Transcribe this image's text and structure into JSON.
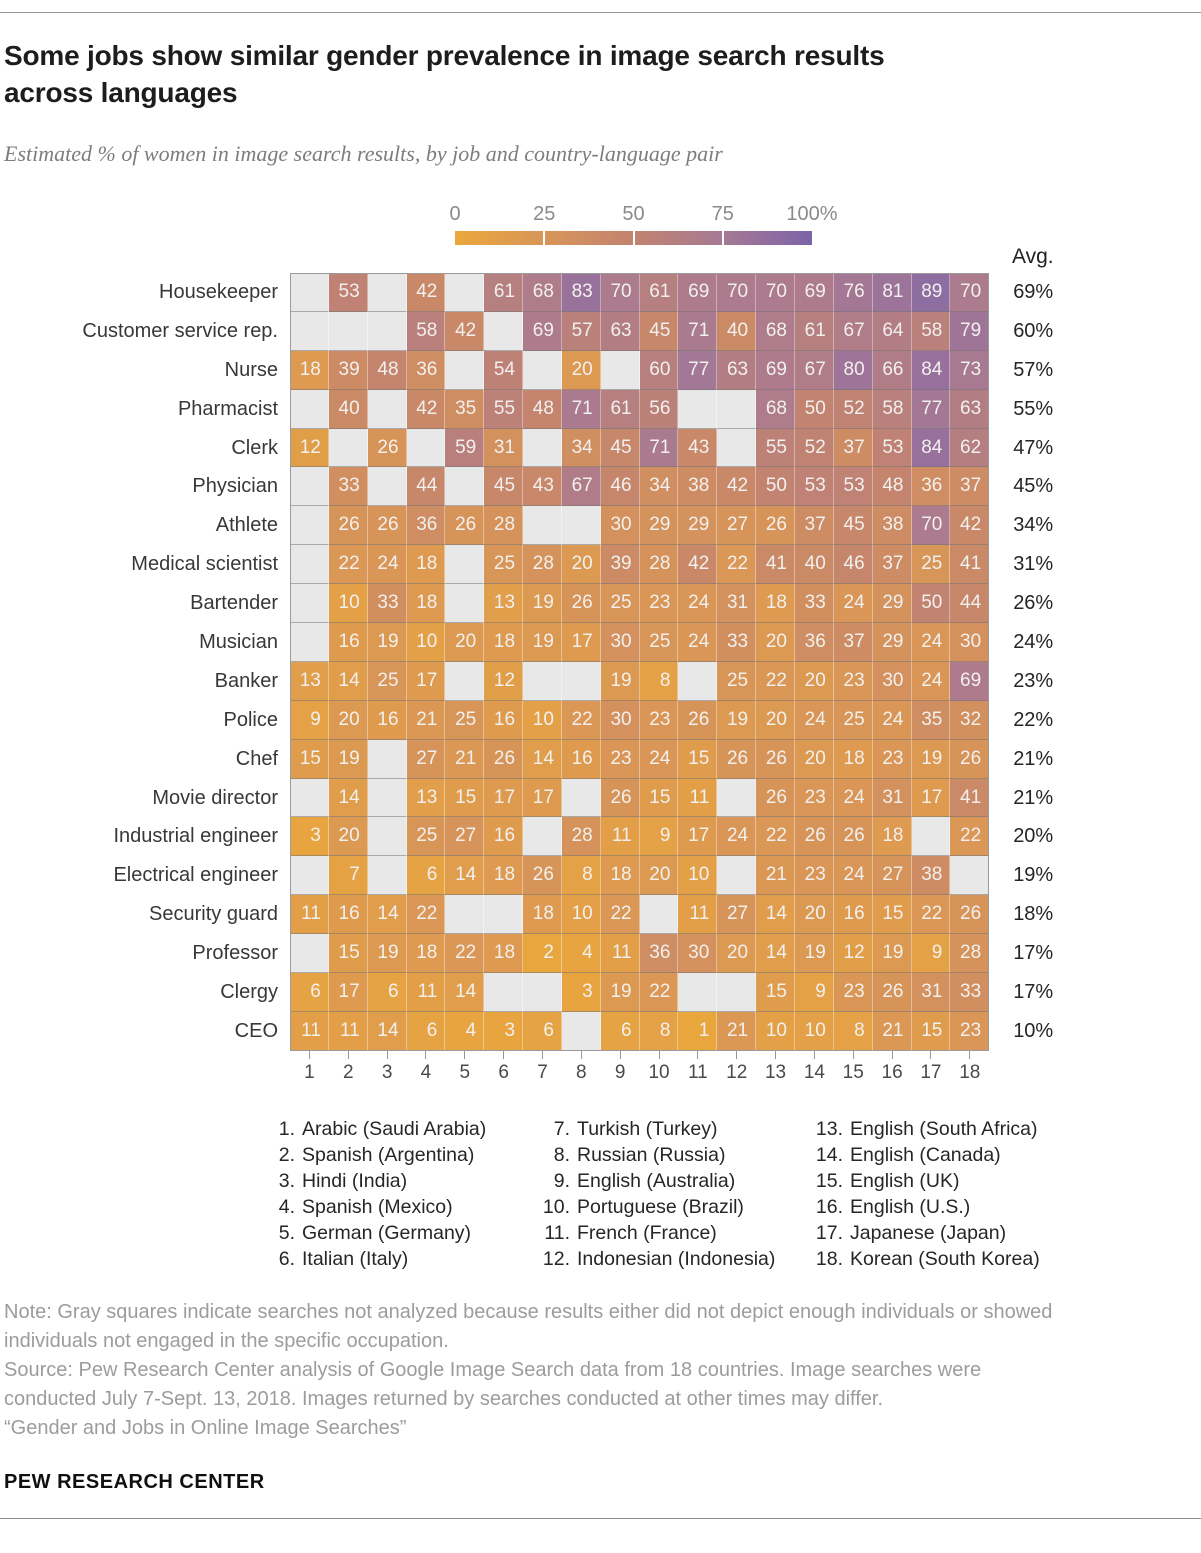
{
  "header": {
    "title_lines": [
      "Some jobs show similar gender prevalence in image search results",
      "across languages"
    ],
    "subtitle": "Estimated % of women in image search results, by job and country-language pair"
  },
  "chart_data": {
    "type": "heatmap",
    "title": "Some jobs show similar gender prevalence in image search results across languages",
    "subtitle": "Estimated % of women in image search results, by job and country-language pair",
    "value_domain": [
      0,
      100
    ],
    "colorbar": {
      "tick_labels": [
        "0",
        "25",
        "50",
        "75",
        "100%"
      ],
      "tick_positions": [
        0,
        25,
        50,
        75,
        100
      ],
      "gradient_stops": [
        "#EAA73C",
        "#D89558",
        "#C28370",
        "#A67994",
        "#7C63A9"
      ]
    },
    "missing_color": "#e8e8e8",
    "missing_meaning": "search not analyzed",
    "avg_header": "Avg.",
    "columns": [
      "1",
      "2",
      "3",
      "4",
      "5",
      "6",
      "7",
      "8",
      "9",
      "10",
      "11",
      "12",
      "13",
      "14",
      "15",
      "16",
      "17",
      "18"
    ],
    "rows": [
      {
        "job": "Housekeeper",
        "values": [
          null,
          53,
          null,
          42,
          null,
          61,
          68,
          83,
          70,
          61,
          69,
          70,
          70,
          69,
          76,
          81,
          89,
          70
        ],
        "avg": "69%"
      },
      {
        "job": "Customer service rep.",
        "values": [
          null,
          null,
          null,
          58,
          42,
          null,
          69,
          57,
          63,
          45,
          71,
          40,
          68,
          61,
          67,
          64,
          58,
          79
        ],
        "avg": "60%"
      },
      {
        "job": "Nurse",
        "values": [
          18,
          39,
          48,
          36,
          null,
          54,
          null,
          20,
          null,
          60,
          77,
          63,
          69,
          67,
          80,
          66,
          84,
          73
        ],
        "avg": "57%"
      },
      {
        "job": "Pharmacist",
        "values": [
          null,
          40,
          null,
          42,
          35,
          55,
          48,
          71,
          61,
          56,
          null,
          null,
          68,
          50,
          52,
          58,
          77,
          63
        ],
        "avg": "55%"
      },
      {
        "job": "Clerk",
        "values": [
          12,
          null,
          26,
          null,
          59,
          31,
          null,
          34,
          45,
          71,
          43,
          null,
          55,
          52,
          37,
          53,
          84,
          62
        ],
        "avg": "47%"
      },
      {
        "job": "Physician",
        "values": [
          null,
          33,
          null,
          44,
          null,
          45,
          43,
          67,
          46,
          34,
          38,
          42,
          50,
          53,
          53,
          48,
          36,
          37
        ],
        "avg": "45%"
      },
      {
        "job": "Athlete",
        "values": [
          null,
          26,
          26,
          36,
          26,
          28,
          null,
          null,
          30,
          29,
          29,
          27,
          26,
          37,
          45,
          38,
          70,
          42
        ],
        "avg": "34%"
      },
      {
        "job": "Medical scientist",
        "values": [
          null,
          22,
          24,
          18,
          null,
          25,
          28,
          20,
          39,
          28,
          42,
          22,
          41,
          40,
          46,
          37,
          25,
          41
        ],
        "avg": "31%"
      },
      {
        "job": "Bartender",
        "values": [
          null,
          10,
          33,
          18,
          null,
          13,
          19,
          26,
          25,
          23,
          24,
          31,
          18,
          33,
          24,
          29,
          50,
          44
        ],
        "avg": "26%"
      },
      {
        "job": "Musician",
        "values": [
          null,
          16,
          19,
          10,
          20,
          18,
          19,
          17,
          30,
          25,
          24,
          33,
          20,
          36,
          37,
          29,
          24,
          30
        ],
        "avg": "24%"
      },
      {
        "job": "Banker",
        "values": [
          13,
          14,
          25,
          17,
          null,
          12,
          null,
          null,
          19,
          8,
          null,
          25,
          22,
          20,
          23,
          30,
          24,
          69
        ],
        "avg": "23%"
      },
      {
        "job": "Police",
        "values": [
          9,
          20,
          16,
          21,
          25,
          16,
          10,
          22,
          30,
          23,
          26,
          19,
          20,
          24,
          25,
          24,
          35,
          32
        ],
        "avg": "22%"
      },
      {
        "job": "Chef",
        "values": [
          15,
          19,
          null,
          27,
          21,
          26,
          14,
          16,
          23,
          24,
          15,
          26,
          26,
          20,
          18,
          23,
          19,
          26
        ],
        "avg": "21%"
      },
      {
        "job": "Movie director",
        "values": [
          null,
          14,
          null,
          13,
          15,
          17,
          17,
          null,
          26,
          15,
          11,
          null,
          26,
          23,
          24,
          31,
          17,
          41
        ],
        "avg": "21%"
      },
      {
        "job": "Industrial engineer",
        "values": [
          3,
          20,
          null,
          25,
          27,
          16,
          null,
          28,
          11,
          9,
          17,
          24,
          22,
          26,
          26,
          18,
          null,
          22
        ],
        "avg": "20%"
      },
      {
        "job": "Electrical engineer",
        "values": [
          null,
          7,
          null,
          6,
          14,
          18,
          26,
          8,
          18,
          20,
          10,
          null,
          21,
          23,
          24,
          27,
          38,
          null
        ],
        "avg": "19%"
      },
      {
        "job": "Security guard",
        "values": [
          11,
          16,
          14,
          22,
          null,
          null,
          18,
          10,
          22,
          null,
          11,
          27,
          14,
          20,
          16,
          15,
          22,
          26
        ],
        "avg": "18%"
      },
      {
        "job": "Professor",
        "values": [
          null,
          15,
          19,
          18,
          22,
          18,
          2,
          4,
          11,
          36,
          30,
          20,
          14,
          19,
          12,
          19,
          9,
          28
        ],
        "avg": "17%"
      },
      {
        "job": "Clergy",
        "values": [
          6,
          17,
          6,
          11,
          14,
          null,
          null,
          3,
          19,
          22,
          null,
          null,
          15,
          9,
          23,
          26,
          31,
          33
        ],
        "avg": "17%"
      },
      {
        "job": "CEO",
        "values": [
          11,
          11,
          14,
          6,
          4,
          3,
          6,
          null,
          6,
          8,
          1,
          21,
          10,
          10,
          8,
          21,
          15,
          23
        ],
        "avg": "10%"
      }
    ],
    "column_key": {
      "columns": [
        [
          {
            "n": "1.",
            "label": "Arabic (Saudi Arabia)"
          },
          {
            "n": "2.",
            "label": "Spanish (Argentina)"
          },
          {
            "n": "3.",
            "label": "Hindi (India)"
          },
          {
            "n": "4.",
            "label": "Spanish (Mexico)"
          },
          {
            "n": "5.",
            "label": "German (Germany)"
          },
          {
            "n": "6.",
            "label": "Italian (Italy)"
          }
        ],
        [
          {
            "n": "7.",
            "label": "Turkish (Turkey)"
          },
          {
            "n": "8.",
            "label": "Russian (Russia)"
          },
          {
            "n": "9.",
            "label": "English (Australia)"
          },
          {
            "n": "10.",
            "label": "Portuguese (Brazil)"
          },
          {
            "n": "11.",
            "label": "French (France)"
          },
          {
            "n": "12.",
            "label": "Indonesian (Indonesia)"
          }
        ],
        [
          {
            "n": "13.",
            "label": "English (South Africa)"
          },
          {
            "n": "14.",
            "label": "English (Canada)"
          },
          {
            "n": "15.",
            "label": "English (UK)"
          },
          {
            "n": "16.",
            "label": "English (U.S.)"
          },
          {
            "n": "17.",
            "label": "Japanese (Japan)"
          },
          {
            "n": "18.",
            "label": "Korean (South Korea)"
          }
        ]
      ]
    }
  },
  "footer": {
    "note_lines": [
      "Note: Gray squares indicate searches not analyzed because results either did not depict enough individuals or showed",
      "individuals not engaged in the specific occupation."
    ],
    "source_lines": [
      "Source: Pew Research Center analysis of Google Image Search data from 18 countries. Image searches were",
      "conducted July 7-Sept. 13, 2018. Images returned by searches conducted at other times may differ."
    ],
    "report_line": "“Gender and Jobs in Online Image Searches”",
    "brand": "PEW RESEARCH CENTER"
  }
}
